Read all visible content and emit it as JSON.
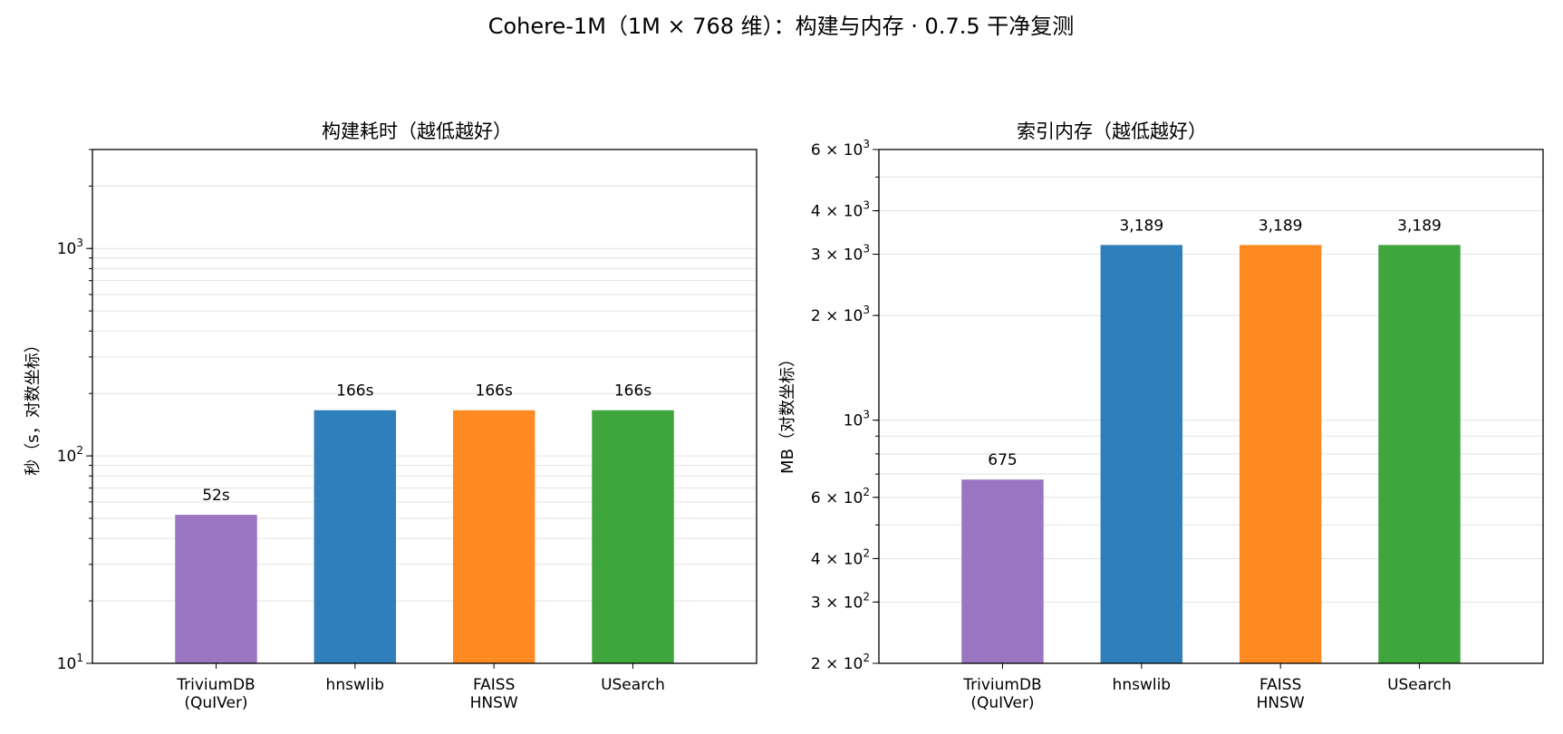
{
  "figure": {
    "title": "Cohere-1M（1M × 768 维）：构建与内存 · 0.7.5 干净复测"
  },
  "chart_data": [
    {
      "type": "bar",
      "title": "构建耗时（越低越好）",
      "ylabel": "秒（s，对数坐标）",
      "yscale": "log",
      "ylim": [
        10,
        3000
      ],
      "grid": "y",
      "categories": [
        "TriviumDB\n(QuIVer)",
        "hnswlib",
        "FAISS\nHNSW",
        "USearch"
      ],
      "values": [
        52,
        166,
        166,
        166
      ],
      "data_labels": [
        "52s",
        "166s",
        "166s",
        "166s"
      ],
      "colors": [
        "#9b74c2",
        "#2f7fba",
        "#ff8a22",
        "#3fa53d"
      ],
      "yticks": [
        {
          "value": 10,
          "base": "10",
          "exp": "1"
        },
        {
          "value": 100,
          "base": "10",
          "exp": "2"
        },
        {
          "value": 1000,
          "base": "10",
          "exp": "3"
        }
      ]
    },
    {
      "type": "bar",
      "title": "索引内存（越低越好）",
      "ylabel": "MB（对数坐标）",
      "yscale": "log",
      "ylim": [
        200,
        6000
      ],
      "grid": "y",
      "categories": [
        "TriviumDB\n(QuIVer)",
        "hnswlib",
        "FAISS\nHNSW",
        "USearch"
      ],
      "values": [
        675,
        3189,
        3189,
        3189
      ],
      "data_labels": [
        "675",
        "3,189",
        "3,189",
        "3,189"
      ],
      "colors": [
        "#9b74c2",
        "#2f7fba",
        "#ff8a22",
        "#3fa53d"
      ],
      "yticks": [
        {
          "value": 200,
          "base": "2 × 10",
          "exp": "2"
        },
        {
          "value": 300,
          "base": "3 × 10",
          "exp": "2"
        },
        {
          "value": 400,
          "base": "4 × 10",
          "exp": "2"
        },
        {
          "value": 600,
          "base": "6 × 10",
          "exp": "2"
        },
        {
          "value": 1000,
          "base": "10",
          "exp": "3"
        },
        {
          "value": 2000,
          "base": "2 × 10",
          "exp": "3"
        },
        {
          "value": 3000,
          "base": "3 × 10",
          "exp": "3"
        },
        {
          "value": 4000,
          "base": "4 × 10",
          "exp": "3"
        },
        {
          "value": 6000,
          "base": "6 × 10",
          "exp": "3"
        }
      ]
    }
  ]
}
